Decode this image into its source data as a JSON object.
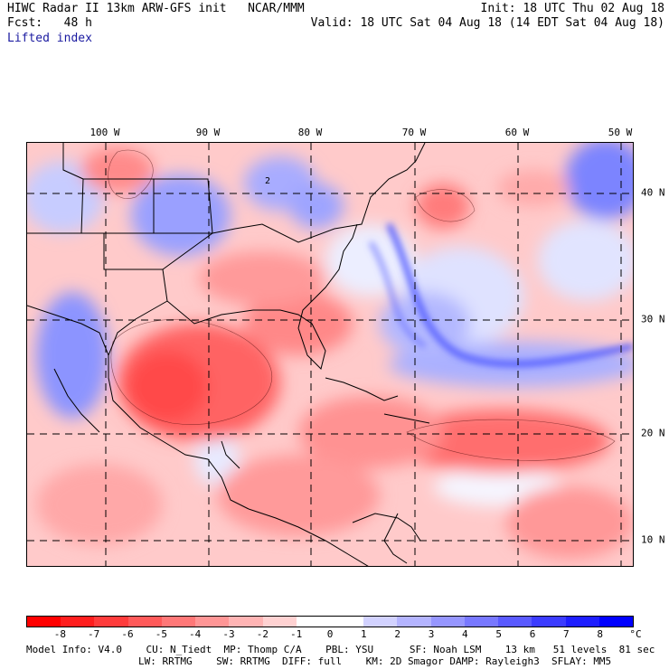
{
  "header": {
    "line1_left": "HIWC Radar II 13km ARW-GFS init   NCAR/MMM",
    "line1_right": "Init: 18 UTC Thu 02 Aug 18",
    "line2_left": "Fcst:   48 h",
    "line2_right": "Valid: 18 UTC Sat 04 Aug 18 (14 EDT Sat 04 Aug 18)",
    "field": "Lifted index"
  },
  "map": {
    "lon_labels": [
      "100 W",
      "90 W",
      "80 W",
      "70 W",
      "60 W",
      "50 W"
    ],
    "lat_labels": [
      "40 N",
      "30 N",
      "20 N",
      "10 N"
    ],
    "center_marker": "2"
  },
  "colorbar": {
    "labels": [
      "-8",
      "-7",
      "-6",
      "-5",
      "-4",
      "-3",
      "-2",
      "-1",
      "0",
      "1",
      "2",
      "3",
      "4",
      "5",
      "6",
      "7",
      "8"
    ],
    "unit": "°C",
    "colors": [
      "#ff0000",
      "#ff1e1e",
      "#ff3c3c",
      "#ff5a5a",
      "#ff7878",
      "#ff9696",
      "#ffb4b4",
      "#ffd2d2",
      "#ffffff",
      "#ffffff",
      "#d2d2ff",
      "#b4b4ff",
      "#9696ff",
      "#7878ff",
      "#5a5aff",
      "#3c3cff",
      "#1e1eff",
      "#0000ff"
    ]
  },
  "footer": {
    "line1": "Model Info: V4.0    CU: N_Tiedt  MP: Thomp C/A    PBL: YSU      SF: Noah LSM    13 km   51 levels  81 sec",
    "line2": "LW: RRTMG    SW: RRTMG  DIFF: full    KM: 2D Smagor DAMP: Rayleigh3  SFLAY: MM5"
  }
}
